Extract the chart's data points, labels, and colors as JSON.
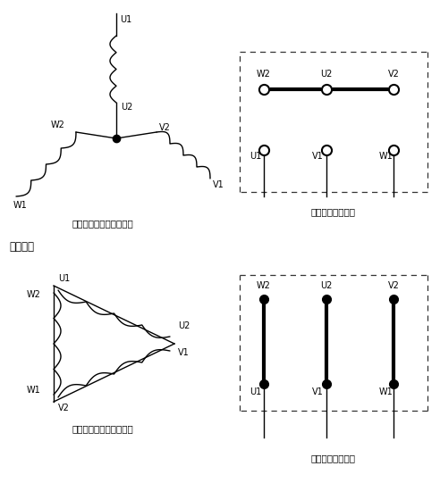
{
  "top_left_caption": "三相绕组电气通路示意图",
  "top_right_caption": "接线盒接线示意图",
  "bot_section_label": "星型接法",
  "bot_left_caption": "三相绕组电气通路示意图",
  "bot_right_caption": "接线盒接线示意图",
  "bg_color": "#ffffff",
  "line_color": "#000000",
  "font_size_caption": 7.5,
  "font_size_label": 8.5,
  "font_size_terminal": 7
}
